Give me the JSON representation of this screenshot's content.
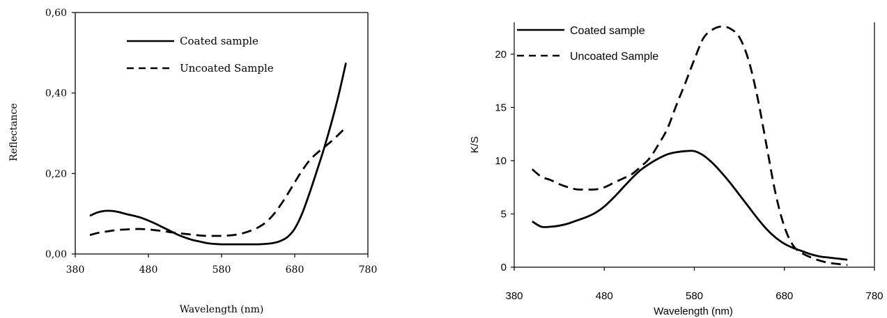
{
  "chart_data": [
    {
      "type": "line",
      "xlabel": "Wavelength (nm)",
      "ylabel": "Reflectance",
      "xlim": [
        380,
        780
      ],
      "ylim": [
        0,
        0.6
      ],
      "xticks": [
        "380",
        "480",
        "580",
        "680",
        "780"
      ],
      "yticks": [
        "0,00",
        "0,20",
        "0,40",
        "0,60"
      ],
      "ytick_values": [
        0,
        0.2,
        0.4,
        0.6
      ],
      "grid": false,
      "legend_position": "top-center",
      "series": [
        {
          "name": "Coated sample",
          "style": "solid",
          "x": [
            400,
            410,
            420,
            430,
            440,
            450,
            460,
            470,
            480,
            490,
            500,
            510,
            520,
            530,
            540,
            550,
            560,
            570,
            580,
            590,
            600,
            610,
            620,
            630,
            640,
            650,
            660,
            670,
            680,
            690,
            700,
            710,
            720,
            730,
            740,
            750
          ],
          "y": [
            0.095,
            0.103,
            0.107,
            0.107,
            0.104,
            0.099,
            0.095,
            0.09,
            0.083,
            0.075,
            0.066,
            0.057,
            0.048,
            0.041,
            0.035,
            0.031,
            0.027,
            0.025,
            0.024,
            0.024,
            0.024,
            0.024,
            0.024,
            0.024,
            0.025,
            0.027,
            0.032,
            0.042,
            0.063,
            0.1,
            0.15,
            0.205,
            0.262,
            0.325,
            0.395,
            0.475
          ]
        },
        {
          "name": "Uncoated Sample",
          "style": "dashed",
          "x": [
            400,
            410,
            420,
            430,
            440,
            450,
            460,
            470,
            480,
            490,
            500,
            510,
            520,
            530,
            540,
            550,
            560,
            570,
            580,
            590,
            600,
            610,
            620,
            630,
            640,
            650,
            660,
            670,
            680,
            690,
            700,
            710,
            720,
            730,
            740,
            750
          ],
          "y": [
            0.047,
            0.052,
            0.055,
            0.058,
            0.06,
            0.061,
            0.062,
            0.062,
            0.061,
            0.059,
            0.057,
            0.054,
            0.052,
            0.05,
            0.048,
            0.046,
            0.045,
            0.045,
            0.045,
            0.046,
            0.048,
            0.052,
            0.058,
            0.066,
            0.078,
            0.096,
            0.12,
            0.148,
            0.178,
            0.207,
            0.232,
            0.25,
            0.265,
            0.28,
            0.297,
            0.315
          ]
        }
      ]
    },
    {
      "type": "line",
      "xlabel": "Wavelength (nm)",
      "ylabel": "K/S",
      "xlim": [
        380,
        780
      ],
      "ylim": [
        0,
        23
      ],
      "xticks": [
        "380",
        "480",
        "580",
        "680",
        "780"
      ],
      "yticks": [
        "0",
        "5",
        "10",
        "15",
        "20"
      ],
      "ytick_values": [
        0,
        5,
        10,
        15,
        20
      ],
      "grid": false,
      "legend_position": "top-left",
      "series": [
        {
          "name": "Coated sample",
          "style": "solid",
          "x": [
            400,
            410,
            420,
            430,
            440,
            450,
            460,
            470,
            480,
            490,
            500,
            510,
            520,
            530,
            540,
            550,
            560,
            570,
            580,
            590,
            600,
            610,
            620,
            630,
            640,
            650,
            660,
            670,
            680,
            690,
            700,
            710,
            720,
            730,
            740,
            750
          ],
          "y": [
            4.3,
            3.8,
            3.8,
            3.9,
            4.1,
            4.4,
            4.7,
            5.1,
            5.7,
            6.5,
            7.4,
            8.3,
            9.1,
            9.7,
            10.2,
            10.6,
            10.8,
            10.9,
            10.9,
            10.5,
            9.8,
            8.9,
            7.9,
            6.8,
            5.7,
            4.6,
            3.6,
            2.8,
            2.2,
            1.8,
            1.5,
            1.2,
            1.0,
            0.9,
            0.8,
            0.7
          ]
        },
        {
          "name": "Uncoated Sample",
          "style": "dashed",
          "x": [
            400,
            410,
            420,
            430,
            440,
            450,
            460,
            470,
            480,
            490,
            500,
            510,
            520,
            530,
            540,
            550,
            560,
            570,
            580,
            590,
            600,
            610,
            620,
            630,
            640,
            650,
            660,
            670,
            680,
            690,
            700,
            710,
            720,
            730,
            740,
            750
          ],
          "y": [
            9.2,
            8.5,
            8.2,
            7.8,
            7.5,
            7.3,
            7.3,
            7.3,
            7.5,
            7.9,
            8.3,
            8.7,
            9.4,
            10.2,
            11.5,
            13.0,
            15.2,
            17.3,
            19.5,
            21.5,
            22.3,
            22.6,
            22.4,
            21.6,
            19.5,
            16.0,
            11.5,
            7.0,
            3.8,
            2.0,
            1.3,
            0.9,
            0.6,
            0.4,
            0.3,
            0.2
          ]
        }
      ]
    }
  ]
}
